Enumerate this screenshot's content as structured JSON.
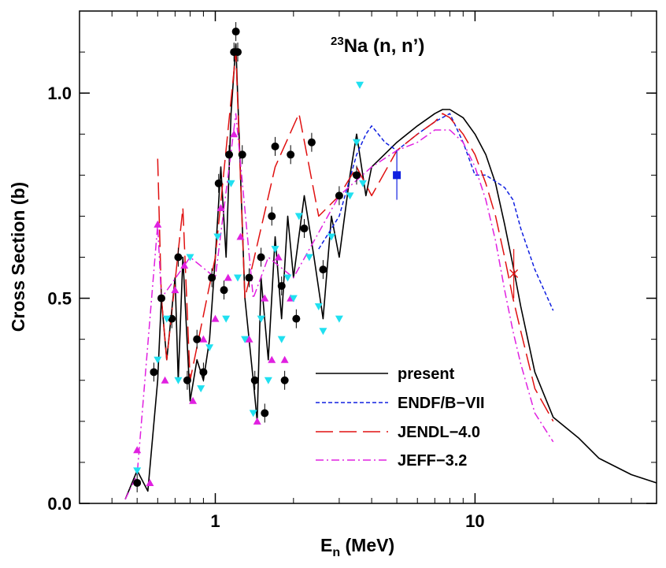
{
  "chart_data": {
    "type": "line",
    "title": {
      "superscript": "23",
      "main": "Na (n, n’)"
    },
    "xlabel": {
      "main": "E",
      "subscript": "n",
      "unit": " (MeV)"
    },
    "ylabel": "Cross Section (b)",
    "xscale": "log",
    "xlim": [
      0.3,
      50
    ],
    "ylim": [
      0,
      1.2
    ],
    "x_ticks": [
      {
        "value": 1,
        "label": "1"
      },
      {
        "value": 10,
        "label": "10"
      }
    ],
    "y_ticks": [
      {
        "value": 0,
        "label": "0.0"
      },
      {
        "value": 0.5,
        "label": "0.5"
      },
      {
        "value": 1.0,
        "label": "1.0"
      }
    ],
    "series": [
      {
        "name": "present",
        "color": "#000000",
        "style": "solid",
        "points": [
          [
            0.45,
            0.01
          ],
          [
            0.5,
            0.08
          ],
          [
            0.55,
            0.03
          ],
          [
            0.6,
            0.3
          ],
          [
            0.62,
            0.5
          ],
          [
            0.65,
            0.35
          ],
          [
            0.7,
            0.55
          ],
          [
            0.72,
            0.3
          ],
          [
            0.75,
            0.6
          ],
          [
            0.8,
            0.25
          ],
          [
            0.85,
            0.35
          ],
          [
            0.9,
            0.3
          ],
          [
            0.95,
            0.4
          ],
          [
            1.0,
            0.6
          ],
          [
            1.05,
            0.82
          ],
          [
            1.1,
            0.6
          ],
          [
            1.15,
            0.95
          ],
          [
            1.2,
            1.12
          ],
          [
            1.25,
            0.8
          ],
          [
            1.3,
            0.5
          ],
          [
            1.4,
            0.3
          ],
          [
            1.45,
            0.2
          ],
          [
            1.5,
            0.55
          ],
          [
            1.6,
            0.35
          ],
          [
            1.7,
            0.65
          ],
          [
            1.8,
            0.45
          ],
          [
            1.9,
            0.7
          ],
          [
            2.0,
            0.55
          ],
          [
            2.2,
            0.75
          ],
          [
            2.4,
            0.6
          ],
          [
            2.6,
            0.45
          ],
          [
            2.8,
            0.7
          ],
          [
            3.0,
            0.6
          ],
          [
            3.3,
            0.8
          ],
          [
            3.5,
            0.9
          ],
          [
            3.8,
            0.75
          ],
          [
            4.0,
            0.82
          ],
          [
            5.0,
            0.88
          ],
          [
            6.0,
            0.92
          ],
          [
            7.0,
            0.95
          ],
          [
            7.5,
            0.96
          ],
          [
            8.0,
            0.96
          ],
          [
            9.0,
            0.94
          ],
          [
            10.0,
            0.9
          ],
          [
            11.0,
            0.85
          ],
          [
            12.0,
            0.78
          ],
          [
            13.0,
            0.68
          ],
          [
            14.0,
            0.58
          ],
          [
            15.0,
            0.48
          ],
          [
            17.0,
            0.32
          ],
          [
            20.0,
            0.21
          ],
          [
            25.0,
            0.16
          ],
          [
            30.0,
            0.11
          ],
          [
            40.0,
            0.07
          ],
          [
            50.0,
            0.05
          ]
        ]
      },
      {
        "name": "ENDF/B−VII",
        "color": "#1020e0",
        "style": "dotted",
        "points": [
          [
            2.5,
            0.62
          ],
          [
            3.0,
            0.7
          ],
          [
            3.5,
            0.85
          ],
          [
            3.8,
            0.9
          ],
          [
            4.0,
            0.92
          ],
          [
            4.5,
            0.88
          ],
          [
            5.0,
            0.86
          ],
          [
            6.0,
            0.9
          ],
          [
            7.0,
            0.93
          ],
          [
            8.0,
            0.95
          ],
          [
            9.0,
            0.88
          ],
          [
            10.0,
            0.8
          ],
          [
            11.0,
            0.8
          ],
          [
            13.0,
            0.77
          ],
          [
            14.0,
            0.74
          ],
          [
            15.0,
            0.67
          ],
          [
            17.0,
            0.57
          ],
          [
            20.0,
            0.47
          ]
        ]
      },
      {
        "name": "JENDL−4.0",
        "color": "#e01010",
        "style": "long-dash",
        "points": [
          [
            0.6,
            0.84
          ],
          [
            0.62,
            0.5
          ],
          [
            0.65,
            0.35
          ],
          [
            0.75,
            0.72
          ],
          [
            0.8,
            0.3
          ],
          [
            1.0,
            0.6
          ],
          [
            1.2,
            1.1
          ],
          [
            1.3,
            0.5
          ],
          [
            1.7,
            0.82
          ],
          [
            2.1,
            0.95
          ],
          [
            2.5,
            0.7
          ],
          [
            3.0,
            0.75
          ],
          [
            3.5,
            0.82
          ],
          [
            4.0,
            0.75
          ],
          [
            5.0,
            0.86
          ],
          [
            6.0,
            0.9
          ],
          [
            7.0,
            0.93
          ],
          [
            7.5,
            0.95
          ],
          [
            8.0,
            0.94
          ],
          [
            9.0,
            0.9
          ],
          [
            10.0,
            0.85
          ],
          [
            11.0,
            0.78
          ],
          [
            12.0,
            0.7
          ],
          [
            13.0,
            0.6
          ],
          [
            14.0,
            0.5
          ],
          [
            15.0,
            0.42
          ],
          [
            17.0,
            0.28
          ],
          [
            20.0,
            0.2
          ]
        ]
      },
      {
        "name": "JEFF−3.2",
        "color": "#e020e0",
        "style": "dash-dot",
        "points": [
          [
            0.45,
            0.01
          ],
          [
            0.5,
            0.07
          ],
          [
            0.6,
            0.68
          ],
          [
            0.62,
            0.5
          ],
          [
            0.8,
            0.6
          ],
          [
            1.0,
            0.55
          ],
          [
            1.2,
            0.95
          ],
          [
            1.4,
            0.5
          ],
          [
            1.6,
            0.6
          ],
          [
            2.0,
            0.55
          ],
          [
            3.0,
            0.75
          ],
          [
            4.0,
            0.82
          ],
          [
            5.0,
            0.86
          ],
          [
            6.0,
            0.88
          ],
          [
            7.0,
            0.91
          ],
          [
            8.0,
            0.91
          ],
          [
            9.0,
            0.88
          ],
          [
            10.0,
            0.82
          ],
          [
            11.0,
            0.74
          ],
          [
            12.0,
            0.64
          ],
          [
            13.0,
            0.52
          ],
          [
            14.0,
            0.42
          ],
          [
            15.0,
            0.34
          ],
          [
            17.0,
            0.22
          ],
          [
            20.0,
            0.15
          ]
        ]
      }
    ],
    "experimental": {
      "black_circles": {
        "color": "#000000",
        "points": [
          [
            0.5,
            0.05
          ],
          [
            0.58,
            0.32
          ],
          [
            0.62,
            0.5
          ],
          [
            0.68,
            0.45
          ],
          [
            0.72,
            0.6
          ],
          [
            0.78,
            0.3
          ],
          [
            0.85,
            0.4
          ],
          [
            0.9,
            0.32
          ],
          [
            0.97,
            0.55
          ],
          [
            1.03,
            0.78
          ],
          [
            1.08,
            0.52
          ],
          [
            1.13,
            0.85
          ],
          [
            1.18,
            1.1
          ],
          [
            1.2,
            1.15
          ],
          [
            1.22,
            1.1
          ],
          [
            1.27,
            0.85
          ],
          [
            1.35,
            0.55
          ],
          [
            1.42,
            0.3
          ],
          [
            1.5,
            0.6
          ],
          [
            1.55,
            0.22
          ],
          [
            1.65,
            0.7
          ],
          [
            1.7,
            0.87
          ],
          [
            1.8,
            0.53
          ],
          [
            1.85,
            0.3
          ],
          [
            1.95,
            0.85
          ],
          [
            2.05,
            0.45
          ],
          [
            2.2,
            0.67
          ],
          [
            2.35,
            0.88
          ],
          [
            2.6,
            0.57
          ],
          [
            3.0,
            0.75
          ],
          [
            3.5,
            0.8
          ]
        ]
      },
      "magenta_triangles": {
        "color": "#e020e0",
        "points": [
          [
            0.5,
            0.13
          ],
          [
            0.56,
            0.05
          ],
          [
            0.6,
            0.68
          ],
          [
            0.64,
            0.3
          ],
          [
            0.7,
            0.52
          ],
          [
            0.76,
            0.58
          ],
          [
            0.82,
            0.25
          ],
          [
            0.9,
            0.4
          ],
          [
            1.0,
            0.45
          ],
          [
            1.05,
            0.72
          ],
          [
            1.12,
            0.55
          ],
          [
            1.18,
            0.9
          ],
          [
            1.25,
            0.65
          ],
          [
            1.35,
            0.4
          ],
          [
            1.45,
            0.2
          ],
          [
            1.55,
            0.5
          ],
          [
            1.65,
            0.35
          ],
          [
            1.75,
            0.6
          ],
          [
            1.85,
            0.35
          ],
          [
            1.95,
            0.5
          ]
        ]
      },
      "cyan_triangles": {
        "color": "#20e0f0",
        "points": [
          [
            0.5,
            0.08
          ],
          [
            0.6,
            0.35
          ],
          [
            0.65,
            0.45
          ],
          [
            0.72,
            0.3
          ],
          [
            0.8,
            0.6
          ],
          [
            0.88,
            0.28
          ],
          [
            0.95,
            0.38
          ],
          [
            1.02,
            0.65
          ],
          [
            1.1,
            0.45
          ],
          [
            1.15,
            0.78
          ],
          [
            1.22,
            0.55
          ],
          [
            1.3,
            0.4
          ],
          [
            1.4,
            0.22
          ],
          [
            1.5,
            0.45
          ],
          [
            1.6,
            0.3
          ],
          [
            1.7,
            0.62
          ],
          [
            1.8,
            0.4
          ],
          [
            1.9,
            0.55
          ],
          [
            2.0,
            0.5
          ],
          [
            2.1,
            0.7
          ],
          [
            2.3,
            0.6
          ],
          [
            2.5,
            0.48
          ],
          [
            2.6,
            0.42
          ],
          [
            2.8,
            0.65
          ],
          [
            3.0,
            0.45
          ],
          [
            3.3,
            0.75
          ],
          [
            3.5,
            0.88
          ],
          [
            3.6,
            1.02
          ],
          [
            3.7,
            0.78
          ]
        ]
      },
      "blue_square": {
        "color": "#1020e0",
        "x": 5.0,
        "y": 0.8,
        "yerr": 0.06
      },
      "red_cross": {
        "color": "#e01010",
        "x": 14.1,
        "y": 0.56,
        "yerr": 0.06
      }
    }
  }
}
